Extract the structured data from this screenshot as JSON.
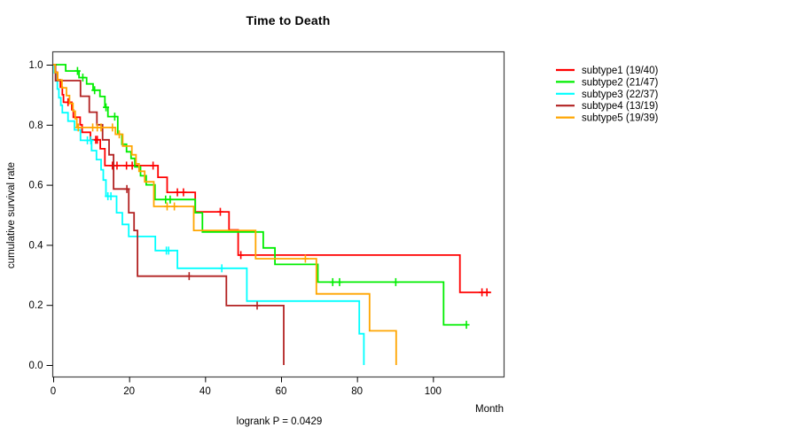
{
  "page": {
    "background": "#ffffff"
  },
  "chart_data": {
    "type": "line",
    "variant": "kaplan-meier-step",
    "title": "Time to Death",
    "xlabel": "Month",
    "ylabel": "cumulative survival rate",
    "annotation": "logrank P = 0.0429",
    "xlim": [
      0,
      119
    ],
    "ylim": [
      0.0,
      1.0
    ],
    "xticks": [
      0,
      20,
      40,
      60,
      80,
      100
    ],
    "yticks": [
      0.0,
      0.2,
      0.4,
      0.6,
      0.8,
      1.0
    ],
    "grid": false,
    "legend_position": "right-outside",
    "axis_color": "#444444",
    "series": [
      {
        "name": "subtype1",
        "label": "subtype1 (19/40)",
        "events": 19,
        "n": 40,
        "color": "#ff0000",
        "steps": [
          [
            0,
            1
          ],
          [
            0.5,
            0.975
          ],
          [
            1.1,
            0.95
          ],
          [
            1.9,
            0.925
          ],
          [
            2.4,
            0.9
          ],
          [
            2.7,
            0.875
          ],
          [
            4.9,
            0.85
          ],
          [
            5.3,
            0.825
          ],
          [
            7.1,
            0.8
          ],
          [
            7.6,
            0.775
          ],
          [
            9.8,
            0.75
          ],
          [
            12.4,
            0.72
          ],
          [
            13.6,
            0.664
          ],
          [
            27.6,
            0.625
          ],
          [
            30,
            0.575
          ],
          [
            37.4,
            0.51
          ],
          [
            46.3,
            0.45
          ],
          [
            48.7,
            0.366
          ],
          [
            107.1,
            0.242
          ]
        ],
        "end_time": 115.3,
        "censors": [
          3.9,
          11.2,
          11.6,
          15.6,
          16.8,
          19.3,
          20.8,
          26.3,
          32.7,
          34.3,
          44,
          49.4,
          112.9,
          114.2
        ]
      },
      {
        "name": "subtype2",
        "label": "subtype2 (21/47)",
        "events": 21,
        "n": 47,
        "color": "#00ee00",
        "steps": [
          [
            0,
            1
          ],
          [
            3.3,
            0.979
          ],
          [
            6.8,
            0.957
          ],
          [
            8.8,
            0.936
          ],
          [
            10.5,
            0.915
          ],
          [
            12.3,
            0.894
          ],
          [
            13.6,
            0.858
          ],
          [
            14.4,
            0.827
          ],
          [
            17,
            0.768
          ],
          [
            18.1,
            0.735
          ],
          [
            19.3,
            0.71
          ],
          [
            20.5,
            0.688
          ],
          [
            21.5,
            0.66
          ],
          [
            23,
            0.63
          ],
          [
            24.5,
            0.6
          ],
          [
            26.8,
            0.551
          ],
          [
            37.4,
            0.507
          ],
          [
            39.3,
            0.443
          ],
          [
            55.3,
            0.39
          ],
          [
            58.4,
            0.335
          ],
          [
            69.7,
            0.276
          ],
          [
            102.8,
            0.134
          ]
        ],
        "end_time": 109,
        "censors": [
          6.4,
          7.8,
          10.9,
          13.9,
          16.2,
          29.6,
          30.8,
          73.6,
          75.4,
          90.2,
          108.8
        ]
      },
      {
        "name": "subtype3",
        "label": "subtype3 (22/37)",
        "events": 22,
        "n": 37,
        "color": "#00ffff",
        "steps": [
          [
            0,
            1
          ],
          [
            0.3,
            0.973
          ],
          [
            0.7,
            0.946
          ],
          [
            1.1,
            0.919
          ],
          [
            1.5,
            0.89
          ],
          [
            2,
            0.865
          ],
          [
            2.4,
            0.84
          ],
          [
            3.9,
            0.812
          ],
          [
            5.6,
            0.783
          ],
          [
            7.2,
            0.748
          ],
          [
            10.1,
            0.714
          ],
          [
            11.4,
            0.684
          ],
          [
            12.6,
            0.65
          ],
          [
            13.2,
            0.616
          ],
          [
            13.9,
            0.562
          ],
          [
            16.7,
            0.507
          ],
          [
            18.2,
            0.468
          ],
          [
            19.9,
            0.428
          ],
          [
            26.9,
            0.381
          ],
          [
            32.7,
            0.322
          ],
          [
            51,
            0.213
          ],
          [
            80.6,
            0.104
          ],
          [
            81.8,
            0
          ]
        ],
        "end_time": 81.8,
        "censors": [
          9,
          9.9,
          14.4,
          15.2,
          29.8,
          30.4,
          44.4
        ]
      },
      {
        "name": "subtype4",
        "label": "subtype4 (13/19)",
        "events": 13,
        "n": 19,
        "color": "#b22222",
        "steps": [
          [
            0,
            1
          ],
          [
            0.6,
            0.947
          ],
          [
            7.2,
            0.895
          ],
          [
            9.5,
            0.842
          ],
          [
            11.5,
            0.8
          ],
          [
            13,
            0.75
          ],
          [
            14.7,
            0.7
          ],
          [
            15.9,
            0.586
          ],
          [
            19.9,
            0.507
          ],
          [
            21.3,
            0.448
          ],
          [
            22.2,
            0.296
          ],
          [
            45.6,
            0.198
          ],
          [
            60.7,
            0
          ]
        ],
        "end_time": 60.7,
        "censors": [
          19.4,
          35.8,
          53.7
        ]
      },
      {
        "name": "subtype5",
        "label": "subtype5 (19/39)",
        "events": 19,
        "n": 39,
        "color": "#ffa500",
        "steps": [
          [
            0,
            1
          ],
          [
            0.5,
            0.974
          ],
          [
            1.2,
            0.949
          ],
          [
            2.3,
            0.923
          ],
          [
            3.5,
            0.897
          ],
          [
            4.3,
            0.871
          ],
          [
            5.2,
            0.845
          ],
          [
            5.8,
            0.82
          ],
          [
            6.2,
            0.791
          ],
          [
            16.4,
            0.768
          ],
          [
            18.3,
            0.729
          ],
          [
            20.7,
            0.7
          ],
          [
            21.8,
            0.67
          ],
          [
            22.6,
            0.645
          ],
          [
            24.1,
            0.61
          ],
          [
            26.5,
            0.528
          ],
          [
            37,
            0.448
          ],
          [
            53.3,
            0.354
          ],
          [
            69.3,
            0.237
          ],
          [
            83.3,
            0.114
          ],
          [
            90.3,
            0
          ]
        ],
        "end_time": 90.3,
        "censors": [
          6.6,
          10.4,
          11.6,
          12.6,
          15.6,
          17.4,
          30,
          31.9,
          66.4
        ]
      }
    ]
  }
}
